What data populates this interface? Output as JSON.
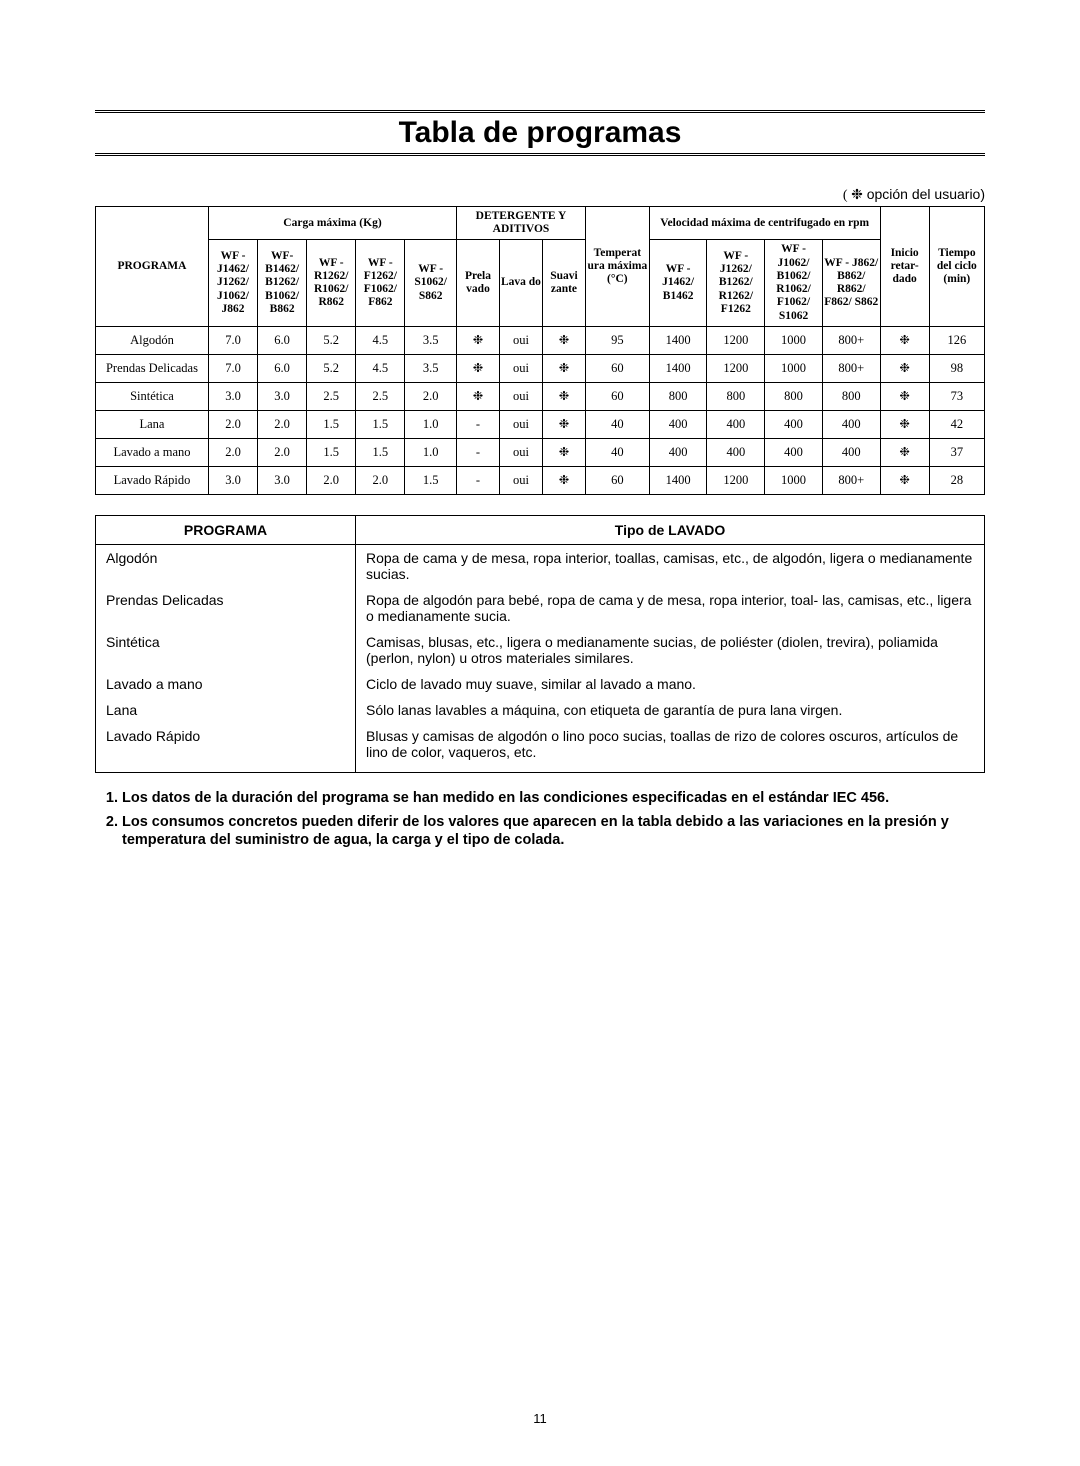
{
  "title": "Tabla de programas",
  "user_option_note": "opción del usuario)",
  "star": "❉",
  "star_prefix": "( ❉",
  "prog_table": {
    "group_headers": {
      "programa": "PROGRAMA",
      "carga": "Carga máxima (Kg)",
      "detergente": "DETERGENTE Y ADITIVOS",
      "temp": "Temperat ura máxima (°C)",
      "velocidad": "Velocidad máxima de centrifugado en rpm",
      "inicio": "Inicio retar- dado",
      "tiempo": "Tiempo del ciclo (min)"
    },
    "sub_headers": {
      "load1": "WF - J1462/ J1262/ J1062/ J862",
      "load2": "WF- B1462/ B1262/ B1062/ B862",
      "load3": "WF - R1262/ R1062/ R862",
      "load4": "WF - F1262/ F1062/ F862",
      "load5": "WF - S1062/ S862",
      "det1": "Prela vado",
      "det2": "Lava do",
      "det3": "Suavi zante",
      "sp1": "WF - J1462/ B1462",
      "sp2": "WF - J1262/ B1262/ R1262/ F1262",
      "sp3": "WF - J1062/ B1062/ R1062/ F1062/ S1062",
      "sp4": "WF - J862/ B862/ R862/ F862/ S862"
    },
    "rows": [
      {
        "name": "Algodón",
        "loads": [
          "7.0",
          "6.0",
          "5.2",
          "4.5",
          "3.5"
        ],
        "det": [
          "❉",
          "oui",
          "❉"
        ],
        "temp": "95",
        "speeds": [
          "1400",
          "1200",
          "1000",
          "800+"
        ],
        "inicio": "❉",
        "tiempo": "126"
      },
      {
        "name": "Prendas Delicadas",
        "loads": [
          "7.0",
          "6.0",
          "5.2",
          "4.5",
          "3.5"
        ],
        "det": [
          "❉",
          "oui",
          "❉"
        ],
        "temp": "60",
        "speeds": [
          "1400",
          "1200",
          "1000",
          "800+"
        ],
        "inicio": "❉",
        "tiempo": "98"
      },
      {
        "name": "Sintética",
        "loads": [
          "3.0",
          "3.0",
          "2.5",
          "2.5",
          "2.0"
        ],
        "det": [
          "❉",
          "oui",
          "❉"
        ],
        "temp": "60",
        "speeds": [
          "800",
          "800",
          "800",
          "800"
        ],
        "inicio": "❉",
        "tiempo": "73"
      },
      {
        "name": "Lana",
        "loads": [
          "2.0",
          "2.0",
          "1.5",
          "1.5",
          "1.0"
        ],
        "det": [
          "-",
          "oui",
          "❉"
        ],
        "temp": "40",
        "speeds": [
          "400",
          "400",
          "400",
          "400"
        ],
        "inicio": "❉",
        "tiempo": "42"
      },
      {
        "name": "Lavado a mano",
        "loads": [
          "2.0",
          "2.0",
          "1.5",
          "1.5",
          "1.0"
        ],
        "det": [
          "-",
          "oui",
          "❉"
        ],
        "temp": "40",
        "speeds": [
          "400",
          "400",
          "400",
          "400"
        ],
        "inicio": "❉",
        "tiempo": "37"
      },
      {
        "name": "Lavado Rápido",
        "loads": [
          "3.0",
          "3.0",
          "2.0",
          "2.0",
          "1.5"
        ],
        "det": [
          "-",
          "oui",
          "❉"
        ],
        "temp": "60",
        "speeds": [
          "1400",
          "1200",
          "1000",
          "800+"
        ],
        "inicio": "❉",
        "tiempo": "28"
      }
    ]
  },
  "tipo_table": {
    "header_a": "PROGRAMA",
    "header_b": "Tipo de LAVADO",
    "rows": [
      {
        "a": "Algodón",
        "b": "Ropa de cama y de mesa, ropa interior, toallas, camisas, etc., de algodón, ligera o medianamente sucias."
      },
      {
        "a": "Prendas Delicadas",
        "b": "Ropa de algodón para bebé, ropa de cama y de mesa, ropa interior, toal- las, camisas, etc., ligera o medianamente sucia."
      },
      {
        "a": "Sintética",
        "b": "Camisas, blusas, etc., ligera o medianamente sucias, de poliéster (diolen, trevira), poliamida (perlon, nylon) u otros materiales similares."
      },
      {
        "a": "Lavado a mano",
        "b": "Ciclo de lavado muy suave, similar al lavado a mano."
      },
      {
        "a": "Lana",
        "b": "Sólo lanas lavables a máquina, con etiqueta de garantía de pura lana virgen."
      },
      {
        "a": "Lavado Rápido",
        "b": "Blusas y camisas de algodón o lino poco sucias, toallas de rizo de colores oscuros, artículos de lino de color, vaqueros, etc."
      }
    ]
  },
  "notes": [
    "Los datos de la duración del programa se han medido en las condiciones especificadas en el estándar IEC 456.",
    "Los consumos concretos pueden diferir de los valores que aparecen en la tabla debido a las variaciones en la presión y temperatura del suministro de agua, la carga y el tipo de colada."
  ],
  "page_number": "11"
}
